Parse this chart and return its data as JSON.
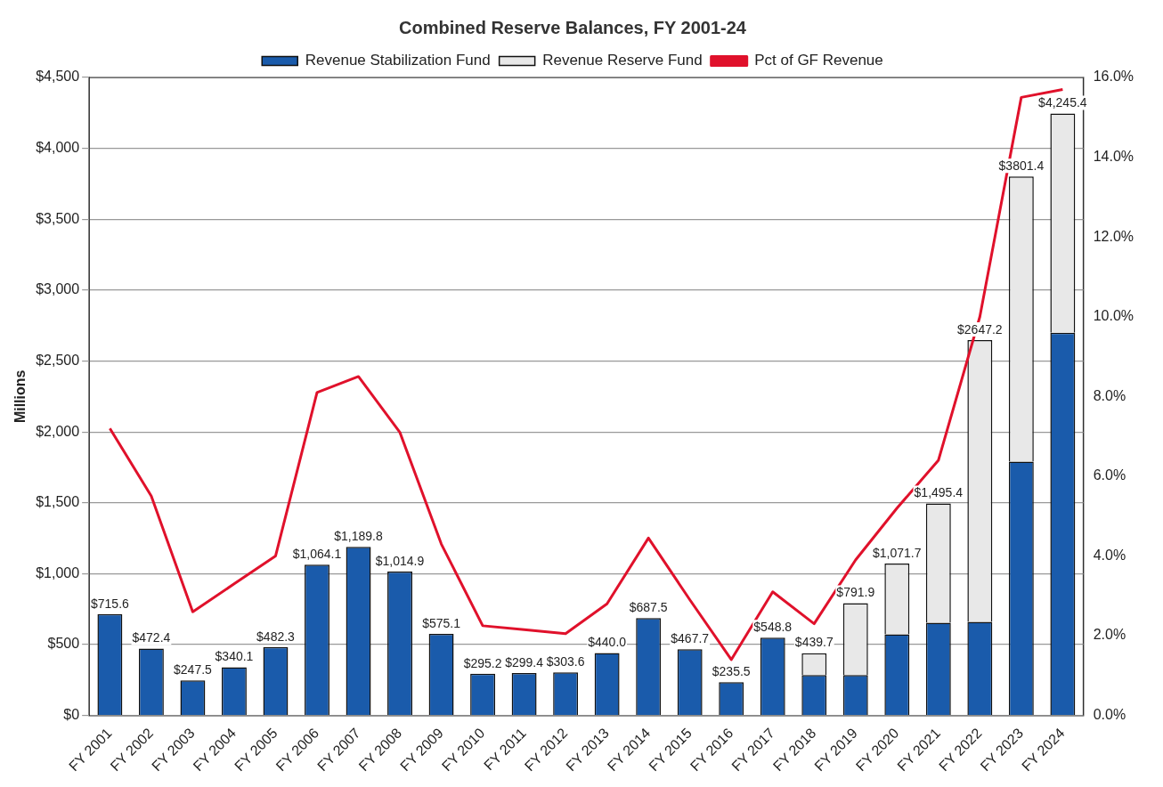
{
  "chart_data": {
    "type": "bar",
    "title": "Combined Reserve Balances, FY 2001-24",
    "ylabel": "Millions",
    "stacked": true,
    "legend": "top",
    "grid": "y",
    "marker": "none",
    "line_style": "solid",
    "categories": [
      "FY 2001",
      "FY 2002",
      "FY 2003",
      "FY 2004",
      "FY 2005",
      "FY 2006",
      "FY 2007",
      "FY 2008",
      "FY 2009",
      "FY 2010",
      "FY 2011",
      "FY 2012",
      "FY 2013",
      "FY 2014",
      "FY 2015",
      "FY 2016",
      "FY 2017",
      "FY 2018",
      "FY 2019",
      "FY 2020",
      "FY 2021",
      "FY 2022",
      "FY 2023",
      "FY 2024"
    ],
    "series": [
      {
        "name": "Revenue Stabilization Fund",
        "color": "#1a5bab",
        "values": [
          715.6,
          472.4,
          247.5,
          340.1,
          482.3,
          1064.1,
          1189.8,
          1014.9,
          575.1,
          295.2,
          299.4,
          303.6,
          440.0,
          687.5,
          467.7,
          235.5,
          548.8,
          285,
          285,
          572,
          654,
          660,
          1790,
          2700
        ]
      },
      {
        "name": "Revenue Reserve Fund",
        "color": "#e8e8e8",
        "values": [
          null,
          null,
          null,
          null,
          null,
          null,
          null,
          null,
          null,
          null,
          null,
          null,
          null,
          null,
          null,
          null,
          null,
          154.7,
          506.9,
          499.7,
          841.4,
          1987.2,
          2011.4,
          1545.4
        ]
      },
      {
        "name": "Pct of GF Revenue",
        "type": "line",
        "axis": "y2",
        "color": "#e0112b",
        "values": [
          7.2,
          5.5,
          2.6,
          3.3,
          4.0,
          8.1,
          8.5,
          7.1,
          4.3,
          2.25,
          2.15,
          2.05,
          2.8,
          4.45,
          2.9,
          1.4,
          3.1,
          2.3,
          3.9,
          5.2,
          6.4,
          10.0,
          15.5,
          15.7
        ]
      }
    ],
    "totals": [
      "$715.6",
      "$472.4",
      "$247.5",
      "$340.1",
      "$482.3",
      "$1,064.1",
      "$1,189.8",
      "$1,014.9",
      "$575.1",
      "$295.2",
      "$299.4",
      "$303.6",
      "$440.0",
      "$687.5",
      "$467.7",
      "$235.5",
      "$548.8",
      "$439.7",
      "$791.9",
      "$1,071.7",
      "$1,495.4",
      "$2647.2",
      "$3801.4",
      "$4,245.4"
    ],
    "ylim": [
      0,
      4500
    ],
    "yticks": [
      {
        "value": 0,
        "label": "$0"
      },
      {
        "value": 500,
        "label": "$500"
      },
      {
        "value": 1000,
        "label": "$1,000"
      },
      {
        "value": 1500,
        "label": "$1,500"
      },
      {
        "value": 2000,
        "label": "$2,000"
      },
      {
        "value": 2500,
        "label": "$2,500"
      },
      {
        "value": 3000,
        "label": "$3,000"
      },
      {
        "value": 3500,
        "label": "$3,500"
      },
      {
        "value": 4000,
        "label": "$4,000"
      },
      {
        "value": 4500,
        "label": "$4,500"
      }
    ],
    "y2lim": [
      0,
      16
    ],
    "y2ticks": [
      {
        "value": 0,
        "label": "0.0%"
      },
      {
        "value": 2,
        "label": "2.0%"
      },
      {
        "value": 4,
        "label": "4.0%"
      },
      {
        "value": 6,
        "label": "6.0%"
      },
      {
        "value": 8,
        "label": "8.0%"
      },
      {
        "value": 10,
        "label": "10.0%"
      },
      {
        "value": 12,
        "label": "12.0%"
      },
      {
        "value": 14,
        "label": "14.0%"
      },
      {
        "value": 16,
        "label": "16.0%"
      }
    ]
  }
}
